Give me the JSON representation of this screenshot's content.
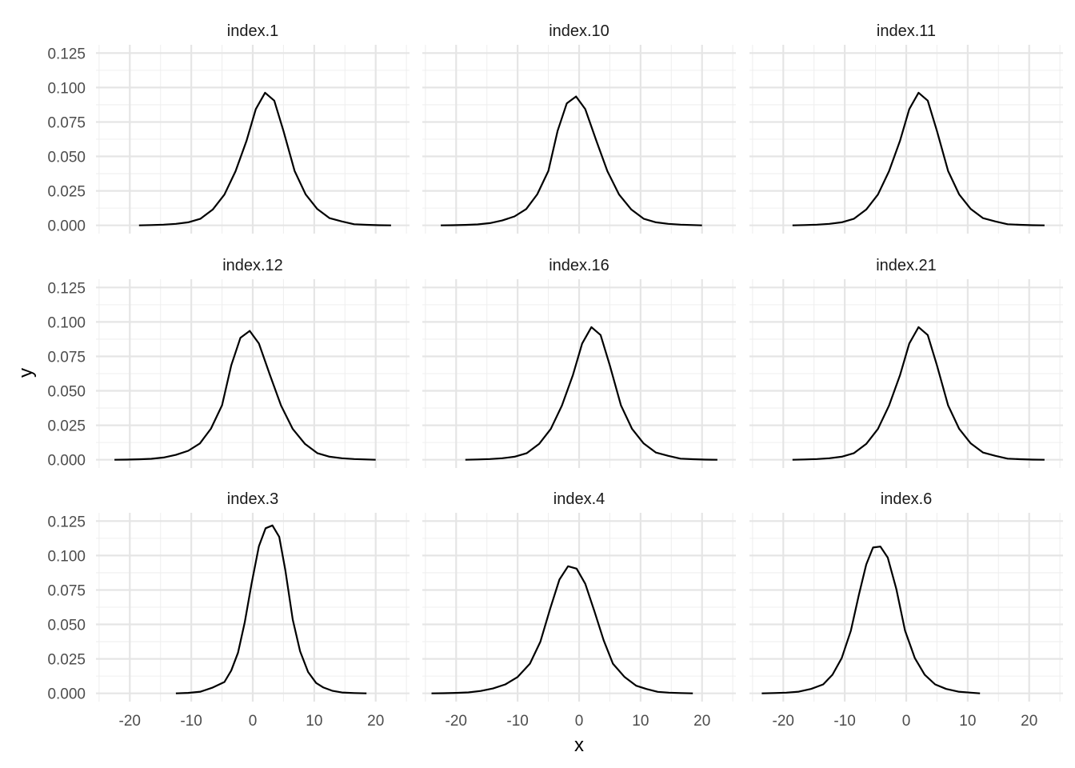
{
  "chart_data": {
    "type": "line",
    "layout": "facet-grid-3x3",
    "xlabel": "x",
    "ylabel": "y",
    "xlim": [
      -25.5,
      25.5
    ],
    "ylim": [
      -0.006,
      0.131
    ],
    "x_ticks": [
      -20,
      -10,
      0,
      10,
      20
    ],
    "x_tick_labels": [
      "-20",
      "-10",
      "0",
      "10",
      "20"
    ],
    "y_ticks": [
      0,
      0.025,
      0.05,
      0.075,
      0.1,
      0.125
    ],
    "y_tick_labels": [
      "0.000",
      "0.025",
      "0.050",
      "0.075",
      "0.100",
      "0.125"
    ],
    "grid": true,
    "line_color": "#000000",
    "panels": [
      {
        "name": "index.1",
        "x": [
          -18.5,
          -16.5,
          -14.5,
          -12.5,
          -10.5,
          -8.5,
          -6.5,
          -4.6,
          -2.8,
          -1,
          0.5,
          2,
          3.5,
          5,
          6.8,
          8.6,
          10.5,
          12.5,
          14.5,
          16.5,
          18.5,
          20.5,
          22.5
        ],
        "y": [
          0,
          0.0002,
          0.0005,
          0.0011,
          0.0022,
          0.0048,
          0.0115,
          0.0223,
          0.0393,
          0.0615,
          0.0843,
          0.0962,
          0.0905,
          0.0685,
          0.0395,
          0.0225,
          0.0118,
          0.0052,
          0.0028,
          0.0008,
          0.0004,
          0.0001,
          0
        ]
      },
      {
        "name": "index.10",
        "x": [
          -22.5,
          -20.5,
          -18.5,
          -16.5,
          -14.5,
          -12.5,
          -10.5,
          -8.6,
          -6.8,
          -5,
          -3.5,
          -2,
          -0.5,
          1,
          2.8,
          4.6,
          6.5,
          8.5,
          10.5,
          12.5,
          14.5,
          16.5,
          18.5,
          20
        ],
        "y": [
          0,
          0.0001,
          0.0003,
          0.0007,
          0.0016,
          0.0035,
          0.0065,
          0.0118,
          0.0225,
          0.0395,
          0.0685,
          0.0885,
          0.0935,
          0.0843,
          0.0615,
          0.0393,
          0.0223,
          0.0115,
          0.0048,
          0.0022,
          0.0011,
          0.0005,
          0.0002,
          0
        ]
      },
      {
        "name": "index.11",
        "x": [
          -18.5,
          -16.5,
          -14.5,
          -12.5,
          -10.5,
          -8.5,
          -6.5,
          -4.6,
          -2.8,
          -1,
          0.5,
          2,
          3.5,
          5,
          6.8,
          8.6,
          10.5,
          12.5,
          14.5,
          16.5,
          18.5,
          20.5,
          22.5
        ],
        "y": [
          0,
          0.0002,
          0.0005,
          0.0011,
          0.0022,
          0.0048,
          0.0115,
          0.0223,
          0.0393,
          0.0615,
          0.0843,
          0.0962,
          0.0905,
          0.0685,
          0.0395,
          0.0225,
          0.0118,
          0.0052,
          0.0028,
          0.0008,
          0.0004,
          0.0001,
          0
        ]
      },
      {
        "name": "index.12",
        "x": [
          -22.5,
          -20.5,
          -18.5,
          -16.5,
          -14.5,
          -12.5,
          -10.5,
          -8.6,
          -6.8,
          -5,
          -3.5,
          -2,
          -0.5,
          1,
          2.8,
          4.6,
          6.5,
          8.5,
          10.5,
          12.5,
          14.5,
          16.5,
          18.5,
          20
        ],
        "y": [
          0,
          0.0001,
          0.0003,
          0.0007,
          0.0016,
          0.0035,
          0.0065,
          0.0118,
          0.0225,
          0.0395,
          0.0685,
          0.0885,
          0.0935,
          0.0843,
          0.0615,
          0.0393,
          0.0223,
          0.0115,
          0.0048,
          0.0022,
          0.0011,
          0.0005,
          0.0002,
          0
        ]
      },
      {
        "name": "index.16",
        "x": [
          -18.5,
          -16.5,
          -14.5,
          -12.5,
          -10.5,
          -8.5,
          -6.5,
          -4.6,
          -2.8,
          -1,
          0.5,
          2,
          3.5,
          5,
          6.8,
          8.6,
          10.5,
          12.5,
          14.5,
          16.5,
          18.5,
          20.5,
          22.5
        ],
        "y": [
          0,
          0.0002,
          0.0005,
          0.0011,
          0.0022,
          0.0048,
          0.0115,
          0.0223,
          0.0393,
          0.0615,
          0.0843,
          0.0962,
          0.0905,
          0.0685,
          0.0395,
          0.0225,
          0.0118,
          0.0052,
          0.0028,
          0.0008,
          0.0004,
          0.0001,
          0
        ]
      },
      {
        "name": "index.21",
        "x": [
          -18.5,
          -16.5,
          -14.5,
          -12.5,
          -10.5,
          -8.5,
          -6.5,
          -4.6,
          -2.8,
          -1,
          0.5,
          2,
          3.5,
          5,
          6.8,
          8.6,
          10.5,
          12.5,
          14.5,
          16.5,
          18.5,
          20.5,
          22.5
        ],
        "y": [
          0,
          0.0002,
          0.0005,
          0.0011,
          0.0022,
          0.0048,
          0.0115,
          0.0223,
          0.0393,
          0.0615,
          0.0843,
          0.0962,
          0.0905,
          0.0685,
          0.0395,
          0.0225,
          0.0118,
          0.0052,
          0.0028,
          0.0008,
          0.0004,
          0.0001,
          0
        ]
      },
      {
        "name": "index.3",
        "x": [
          -12.5,
          -10.5,
          -8.5,
          -6.5,
          -4.6,
          -3.5,
          -2.4,
          -1.3,
          -0.2,
          1,
          2.1,
          3.2,
          4.3,
          5.3,
          6.5,
          7.7,
          9,
          10.3,
          11.5,
          13,
          14.5,
          16.5,
          18.5
        ],
        "y": [
          0,
          0.0003,
          0.0012,
          0.0042,
          0.0082,
          0.0165,
          0.0295,
          0.0515,
          0.0795,
          0.1068,
          0.1198,
          0.1218,
          0.1135,
          0.0895,
          0.0535,
          0.0305,
          0.0155,
          0.0075,
          0.0042,
          0.0018,
          0.0006,
          0.0002,
          0
        ]
      },
      {
        "name": "index.4",
        "x": [
          -24,
          -22,
          -20,
          -18,
          -16,
          -14,
          -12,
          -10,
          -8,
          -6.3,
          -4.7,
          -3.2,
          -1.8,
          -0.4,
          1,
          2.5,
          4,
          5.5,
          7.4,
          9.3,
          11,
          12.8,
          14.6,
          16.5,
          18.5
        ],
        "y": [
          0,
          0.0001,
          0.0003,
          0.0007,
          0.0017,
          0.0035,
          0.0065,
          0.0118,
          0.0215,
          0.0375,
          0.0615,
          0.0825,
          0.0922,
          0.0905,
          0.0795,
          0.0595,
          0.0385,
          0.0215,
          0.0118,
          0.0055,
          0.0031,
          0.0011,
          0.0005,
          0.0002,
          0
        ]
      },
      {
        "name": "index.6",
        "x": [
          -23.5,
          -21.5,
          -19.5,
          -17.5,
          -15.5,
          -13.5,
          -12,
          -10.5,
          -9,
          -7.7,
          -6.5,
          -5.4,
          -4.2,
          -3,
          -1.6,
          -0.2,
          1.4,
          3,
          4.7,
          6.5,
          8.5,
          10.5,
          12
        ],
        "y": [
          0,
          0.0002,
          0.0005,
          0.0012,
          0.0032,
          0.0065,
          0.0135,
          0.0255,
          0.0455,
          0.0715,
          0.0935,
          0.1058,
          0.1065,
          0.0985,
          0.0755,
          0.0455,
          0.0255,
          0.0135,
          0.0065,
          0.0032,
          0.0012,
          0.0005,
          0
        ]
      }
    ]
  }
}
